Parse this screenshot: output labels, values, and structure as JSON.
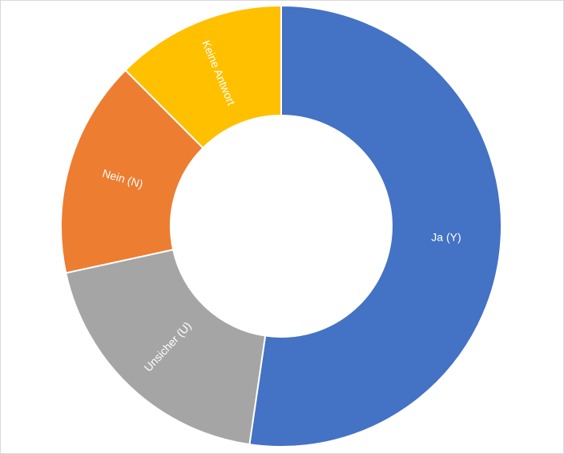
{
  "chart_data": {
    "type": "pie",
    "style": "donut",
    "title": "",
    "legend": "none",
    "slices": [
      {
        "label": "Ja (Y)",
        "value": 0.523,
        "color": "#4472C4",
        "name": "slice-ja"
      },
      {
        "label": "Unsicher (U)",
        "value": 0.193,
        "color": "#A5A5A5",
        "name": "slice-unsicher"
      },
      {
        "label": "Nein (N)",
        "value": 0.159,
        "color": "#ED7D31",
        "name": "slice-nein"
      },
      {
        "label": "Keine Antwort",
        "value": 0.125,
        "color": "#FFC000",
        "name": "slice-keine-antwort"
      }
    ]
  }
}
